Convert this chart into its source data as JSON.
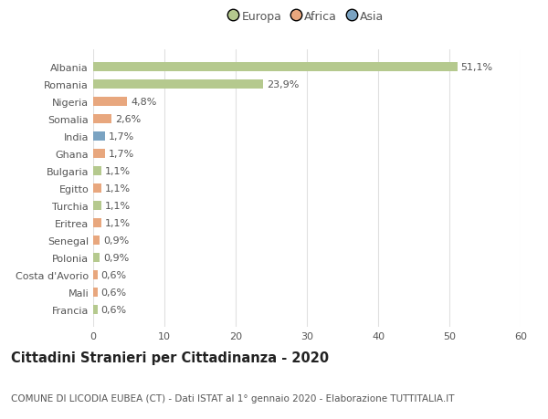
{
  "categories": [
    "Albania",
    "Romania",
    "Nigeria",
    "Somalia",
    "India",
    "Ghana",
    "Bulgaria",
    "Egitto",
    "Turchia",
    "Eritrea",
    "Senegal",
    "Polonia",
    "Costa d'Avorio",
    "Mali",
    "Francia"
  ],
  "values": [
    51.1,
    23.9,
    4.8,
    2.6,
    1.7,
    1.7,
    1.1,
    1.1,
    1.1,
    1.1,
    0.9,
    0.9,
    0.6,
    0.6,
    0.6
  ],
  "labels": [
    "51,1%",
    "23,9%",
    "4,8%",
    "2,6%",
    "1,7%",
    "1,7%",
    "1,1%",
    "1,1%",
    "1,1%",
    "1,1%",
    "0,9%",
    "0,9%",
    "0,6%",
    "0,6%",
    "0,6%"
  ],
  "continents": [
    "Europa",
    "Europa",
    "Africa",
    "Africa",
    "Asia",
    "Africa",
    "Europa",
    "Africa",
    "Europa",
    "Africa",
    "Africa",
    "Europa",
    "Africa",
    "Africa",
    "Europa"
  ],
  "colors": {
    "Europa": "#b5c98e",
    "Africa": "#e8a77e",
    "Asia": "#7aa3c2"
  },
  "xlim": [
    0,
    60
  ],
  "xticks": [
    0,
    10,
    20,
    30,
    40,
    50,
    60
  ],
  "title": "Cittadini Stranieri per Cittadinanza - 2020",
  "subtitle": "COMUNE DI LICODIA EUBEA (CT) - Dati ISTAT al 1° gennaio 2020 - Elaborazione TUTTITALIA.IT",
  "background_color": "#ffffff",
  "bar_height": 0.55,
  "grid_color": "#e0e0e0",
  "text_color": "#555555",
  "label_fontsize": 8,
  "tick_fontsize": 8,
  "title_fontsize": 10.5,
  "subtitle_fontsize": 7.5,
  "legend_entries": [
    "Europa",
    "Africa",
    "Asia"
  ]
}
